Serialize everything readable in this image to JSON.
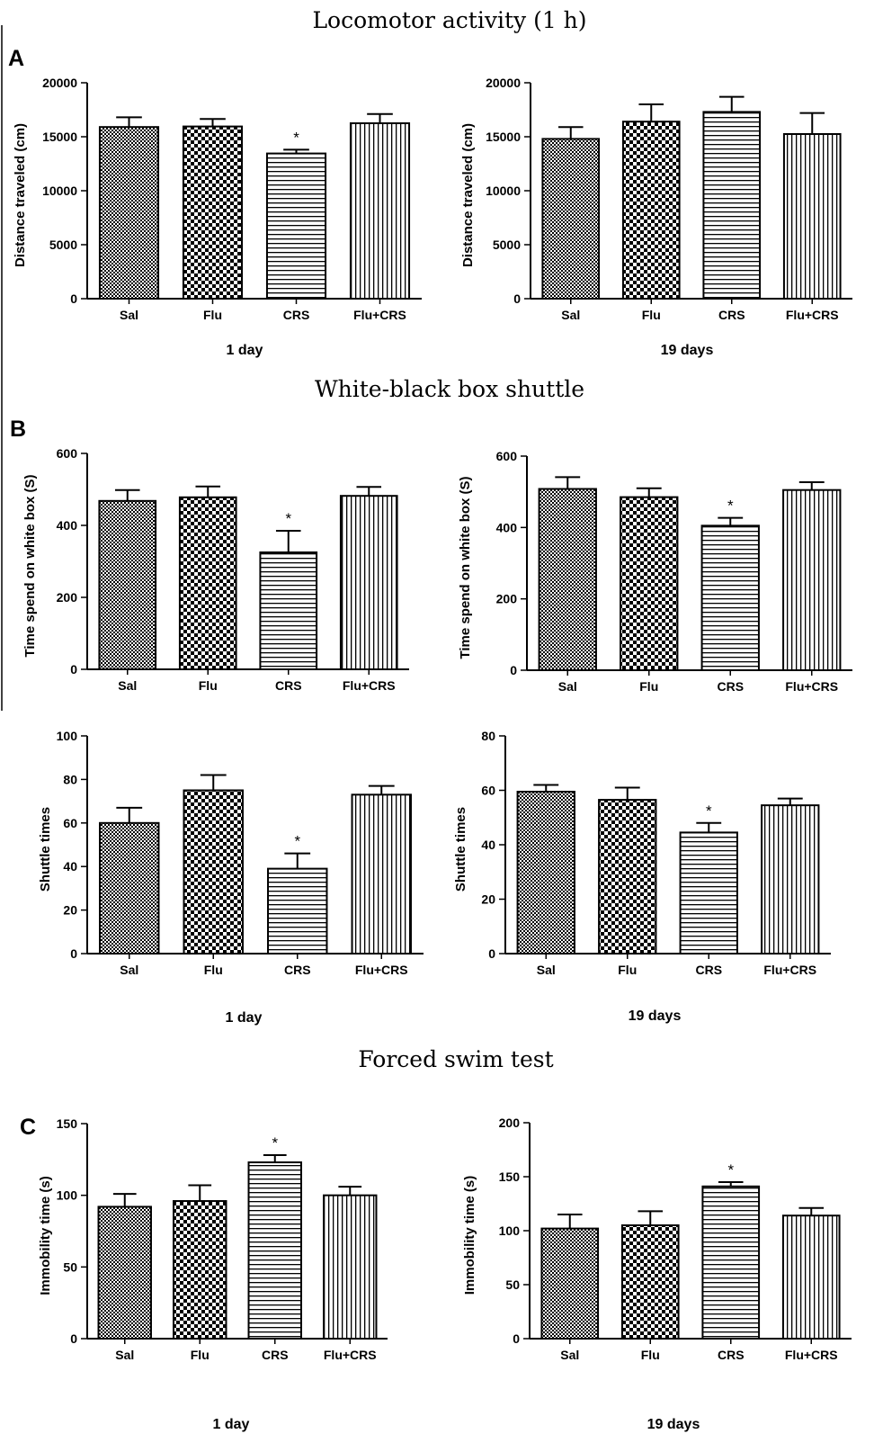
{
  "sections": [
    {
      "title": "Locomotor activity (1 h)",
      "letter": "A"
    },
    {
      "title": "White-black box shuttle",
      "letter": "B"
    },
    {
      "title": "Forced swim test",
      "letter": "C"
    }
  ],
  "captions": {
    "loco_left": "1 day",
    "loco_right": "19 days",
    "shuttle_left": "1 day",
    "shuttle_right": "19 days",
    "swim_left": "1 day",
    "swim_right": "19 days"
  },
  "patterns": {
    "Sal": "checker-fine",
    "Flu": "checker-coarse",
    "CRS": "horizontal-lines",
    "Flu+CRS": "vertical-lines"
  },
  "chart_data": [
    {
      "id": "loco_1d",
      "type": "bar",
      "categories": [
        "Sal",
        "Flu",
        "CRS",
        "Flu+CRS"
      ],
      "values": [
        15900,
        15950,
        13450,
        16250
      ],
      "errors": [
        900,
        700,
        350,
        850
      ],
      "significance": [
        "",
        "",
        "*",
        ""
      ],
      "ylabel": "Distance traveled (cm)",
      "ylim": [
        0,
        20000
      ],
      "yticks": [
        0,
        5000,
        10000,
        15000,
        20000
      ]
    },
    {
      "id": "loco_19d",
      "type": "bar",
      "categories": [
        "Sal",
        "Flu",
        "CRS",
        "Flu+CRS"
      ],
      "values": [
        14800,
        16400,
        17300,
        15250
      ],
      "errors": [
        1100,
        1600,
        1400,
        1950
      ],
      "significance": [
        "",
        "",
        "",
        ""
      ],
      "ylabel": "Distance traveled (cm)",
      "ylim": [
        0,
        20000
      ],
      "yticks": [
        0,
        5000,
        10000,
        15000,
        20000
      ]
    },
    {
      "id": "white_1d",
      "type": "bar",
      "categories": [
        "Sal",
        "Flu",
        "CRS",
        "Flu+CRS"
      ],
      "values": [
        468,
        478,
        325,
        482
      ],
      "errors": [
        30,
        30,
        60,
        25
      ],
      "significance": [
        "",
        "",
        "*",
        ""
      ],
      "ylabel": "Time spend on white box (S)",
      "ylim": [
        0,
        600
      ],
      "yticks": [
        0,
        200,
        400,
        600
      ]
    },
    {
      "id": "white_19d",
      "type": "bar",
      "categories": [
        "Sal",
        "Flu",
        "CRS",
        "Flu+CRS"
      ],
      "values": [
        508,
        485,
        405,
        505
      ],
      "errors": [
        33,
        25,
        22,
        22
      ],
      "significance": [
        "",
        "",
        "*",
        ""
      ],
      "ylabel": "Time spend on white box (S)",
      "ylim": [
        0,
        600
      ],
      "yticks": [
        0,
        200,
        400,
        600
      ]
    },
    {
      "id": "shuttle_1d",
      "type": "bar",
      "categories": [
        "Sal",
        "Flu",
        "CRS",
        "Flu+CRS"
      ],
      "values": [
        60,
        75,
        39,
        73
      ],
      "errors": [
        7,
        7,
        7,
        4
      ],
      "significance": [
        "",
        "",
        "*",
        ""
      ],
      "ylabel": "Shuttle times",
      "ylim": [
        0,
        100
      ],
      "yticks": [
        0,
        20,
        40,
        60,
        80,
        100
      ]
    },
    {
      "id": "shuttle_19d",
      "type": "bar",
      "categories": [
        "Sal",
        "Flu",
        "CRS",
        "Flu+CRS"
      ],
      "values": [
        59.5,
        56.5,
        44.5,
        54.5
      ],
      "errors": [
        2.5,
        4.5,
        3.5,
        2.5
      ],
      "significance": [
        "",
        "",
        "*",
        ""
      ],
      "ylabel": "Shuttle times",
      "ylim": [
        0,
        80
      ],
      "yticks": [
        0,
        20,
        40,
        60,
        80
      ]
    },
    {
      "id": "swim_1d",
      "type": "bar",
      "categories": [
        "Sal",
        "Flu",
        "CRS",
        "Flu+CRS"
      ],
      "values": [
        92,
        96,
        123,
        100
      ],
      "errors": [
        9,
        11,
        5,
        6
      ],
      "significance": [
        "",
        "",
        "*",
        ""
      ],
      "ylabel": "Immobility time (s)",
      "ylim": [
        0,
        150
      ],
      "yticks": [
        0,
        50,
        100,
        150
      ]
    },
    {
      "id": "swim_19d",
      "type": "bar",
      "categories": [
        "Sal",
        "Flu",
        "CRS",
        "Flu+CRS"
      ],
      "values": [
        102,
        105,
        141,
        114
      ],
      "errors": [
        13,
        13,
        4,
        7
      ],
      "significance": [
        "",
        "",
        "*",
        ""
      ],
      "ylabel": "Immobility time (s)",
      "ylim": [
        0,
        200
      ],
      "yticks": [
        0,
        50,
        100,
        150,
        200
      ]
    }
  ]
}
